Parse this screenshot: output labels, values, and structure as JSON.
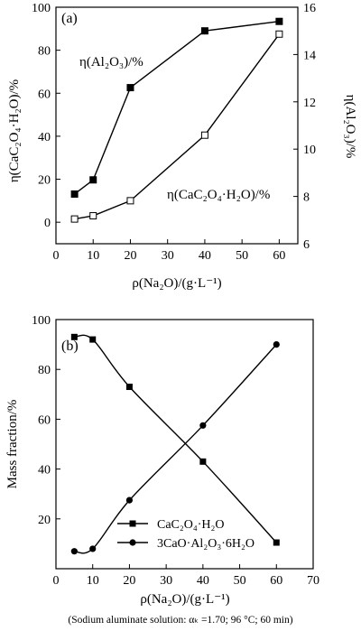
{
  "chart_data": [
    {
      "type": "line",
      "panel_label": "(a)",
      "xlabel": "ρ(Na₂O)/(g·L⁻¹)",
      "ylabel_left": "η(CaC₂O₄·H₂O)/%",
      "ylabel_right": "η(Al₂O₃)/%",
      "xlim": [
        0,
        65
      ],
      "xticks": [
        0,
        10,
        20,
        30,
        40,
        50,
        60
      ],
      "ylim_left": [
        -10,
        100
      ],
      "yticks_left": [
        0,
        20,
        40,
        60,
        80,
        100
      ],
      "ylim_right": [
        6,
        16
      ],
      "yticks_right": [
        6,
        8,
        10,
        12,
        14,
        16
      ],
      "series": [
        {
          "name": "η(Al₂O₃)/%",
          "axis": "right",
          "marker": "filled-square",
          "x": [
            5,
            10,
            20,
            40,
            60
          ],
          "y": [
            8.1,
            8.7,
            12.6,
            15.0,
            15.4
          ]
        },
        {
          "name": "η(CaC₂O₄·H₂O)/%",
          "axis": "left",
          "marker": "open-square",
          "x": [
            5,
            10,
            20,
            40,
            60
          ],
          "y": [
            1.5,
            3,
            10,
            40.5,
            87.5
          ]
        }
      ]
    },
    {
      "type": "line",
      "panel_label": "(b)",
      "xlabel": "ρ(Na₂O)/(g·L⁻¹)",
      "ylabel": "Mass fraction/%",
      "xlim": [
        0,
        70
      ],
      "xticks": [
        0,
        10,
        20,
        30,
        40,
        50,
        60,
        70
      ],
      "ylim": [
        0,
        100
      ],
      "yticks": [
        20,
        40,
        60,
        80,
        100
      ],
      "legend_position": "bottom-left",
      "series": [
        {
          "name": "CaC₂O₄·H₂O",
          "marker": "filled-square",
          "x": [
            5,
            10,
            20,
            40,
            60
          ],
          "y": [
            93,
            92,
            73,
            43,
            10.5
          ]
        },
        {
          "name": "3CaO·Al₂O₃·6H₂O",
          "marker": "filled-circle",
          "x": [
            5,
            10,
            20,
            40,
            60
          ],
          "y": [
            7,
            8,
            27.5,
            57.5,
            90
          ]
        }
      ]
    }
  ],
  "caption": "(Sodium aluminate solution:  αₖ =1.70;  96 °C; 60 min)"
}
